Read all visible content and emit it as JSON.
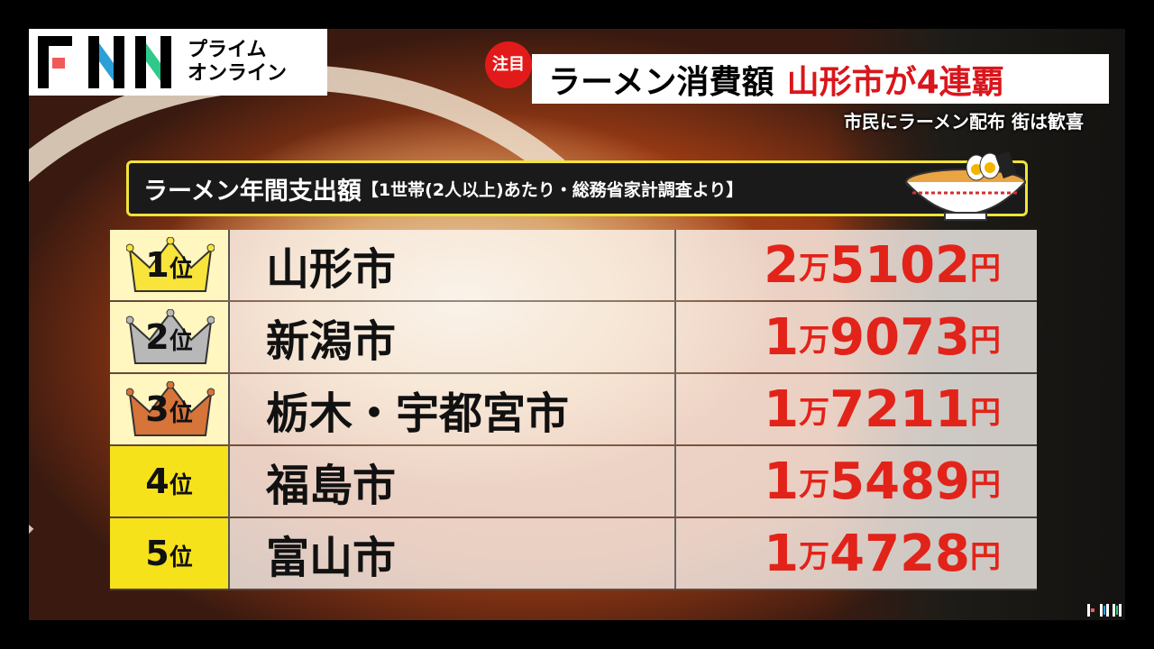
{
  "logo": {
    "brand": "FNN",
    "sub_line1": "プライム",
    "sub_line2": "オンライン",
    "colors": {
      "F": "#f05a5a",
      "N1": "#2aa0d6",
      "N2": "#2fc98a"
    }
  },
  "headline": {
    "badge": "注目",
    "black": "ラーメン消費額",
    "red": "山形市が4連覇",
    "subtitle": "市民にラーメン配布 街は歓喜"
  },
  "table_title": {
    "main": "ラーメン年間支出額",
    "note": "【1世帯(2人以上)あたり・総務省家計調査より】"
  },
  "rank_suffix": "位",
  "man": "万",
  "yen": "円",
  "rows": [
    {
      "rank": "1",
      "city": "山形市",
      "man_part": "2",
      "rest": "5102",
      "crown": "gold"
    },
    {
      "rank": "2",
      "city": "新潟市",
      "man_part": "1",
      "rest": "9073",
      "crown": "silver"
    },
    {
      "rank": "3",
      "city": "栃木・宇都宮市",
      "man_part": "1",
      "rest": "7211",
      "crown": "bronze"
    },
    {
      "rank": "4",
      "city": "福島市",
      "man_part": "1",
      "rest": "5489"
    },
    {
      "rank": "5",
      "city": "富山市",
      "man_part": "1",
      "rest": "4728"
    }
  ],
  "corner_logo": "FNN",
  "colors": {
    "accent_red": "#e2231a",
    "rank_yellow": "#f6e21a",
    "gold": "#f8e43a",
    "silver": "#b8b8b8",
    "bronze": "#d6743a"
  }
}
